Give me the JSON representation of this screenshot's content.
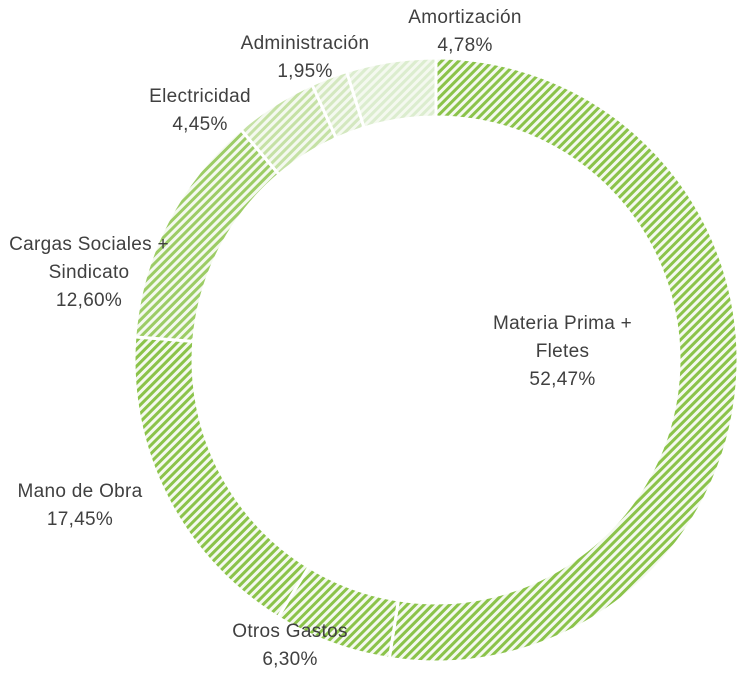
{
  "chart_data": {
    "type": "donut",
    "categories": [
      "Materia Prima + Fletes",
      "Otros Gastos",
      "Mano de Obra",
      "Cargas Sociales + Sindicato",
      "Electricidad",
      "Administración",
      "Amortización"
    ],
    "values": [
      52.47,
      6.3,
      17.45,
      12.6,
      4.45,
      1.95,
      4.78
    ],
    "value_labels": [
      "52,47%",
      "6,30%",
      "17,45%",
      "12,60%",
      "4,45%",
      "1,95%",
      "4,78%"
    ],
    "colors": [
      "#8bc34a",
      "#8bc34a",
      "#8bc34a",
      "#9ccc65",
      "#c5e1a5",
      "#d4e8c0",
      "#dcedcf"
    ]
  }
}
